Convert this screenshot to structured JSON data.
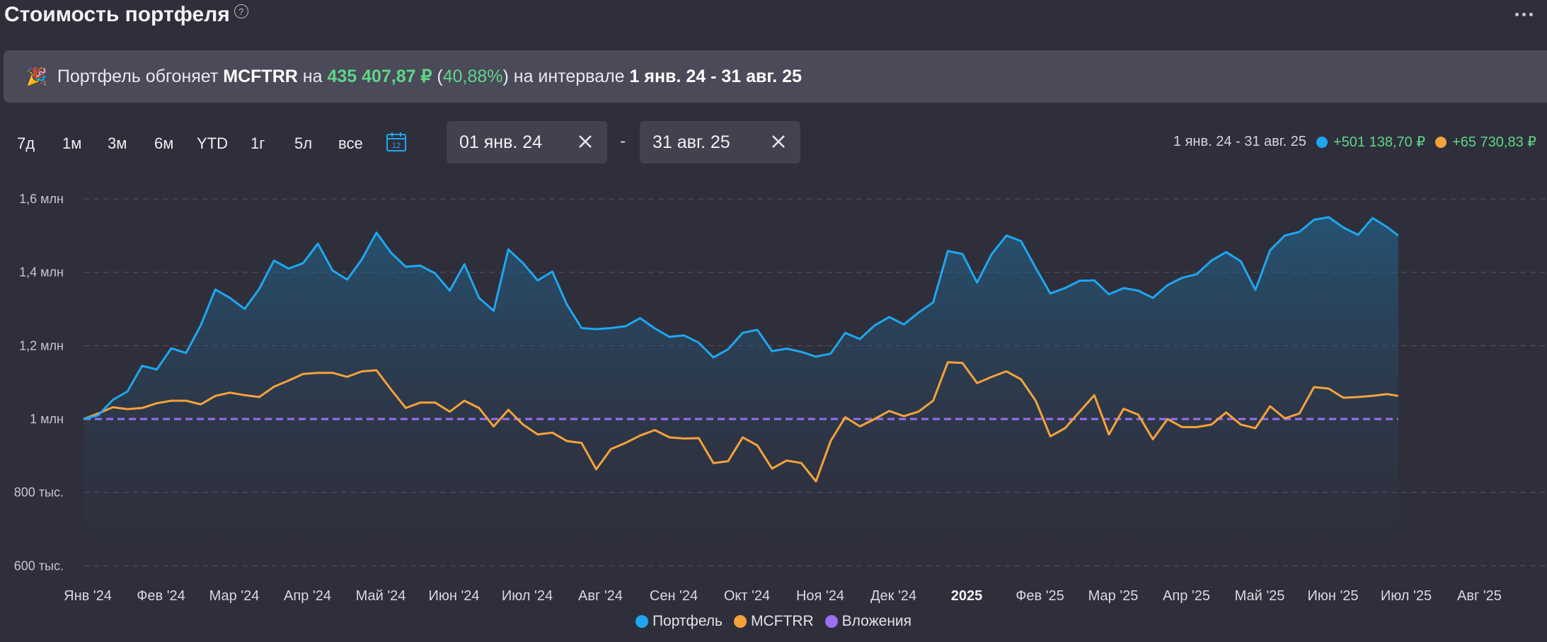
{
  "header": {
    "title": "Стоимость портфеля",
    "help_icon": "question-circle-icon",
    "more_icon": "more-dots-icon"
  },
  "banner": {
    "icon": "🎉",
    "text1": "Портфель обгоняет ",
    "benchmark": "MCFTRR",
    "text2": " на ",
    "amount": "435 407,87 ₽",
    "paren_open": " (",
    "percent": "40,88%",
    "paren_close": ")",
    "text3": " на интервале ",
    "interval": "1 янв. 24 - 31 авг. 25"
  },
  "periods": [
    "7д",
    "1м",
    "3м",
    "6м",
    "YTD",
    "1г",
    "5л",
    "все"
  ],
  "calendar": {
    "icon": "calendar-icon",
    "day": "12",
    "color": "#1ea7f0"
  },
  "date_range": {
    "from": "01 янв. 24",
    "separator": "-",
    "to": "31 авг. 25"
  },
  "summary": {
    "interval": "1 янв. 24 - 31 авг. 25",
    "portfolio_change": "+501 138,70 ₽",
    "benchmark_change": "+65 730,83 ₽"
  },
  "legend": [
    {
      "name": "Портфель",
      "color": "#1ea7f0"
    },
    {
      "name": "MCFTRR",
      "color": "#f5a23a"
    },
    {
      "name": "Вложения",
      "color": "#9b6ef3"
    }
  ],
  "chart_data": {
    "type": "line",
    "y_ticks": [
      {
        "value": 1600000,
        "label": "1,6 млн"
      },
      {
        "value": 1400000,
        "label": "1,4 млн"
      },
      {
        "value": 1200000,
        "label": "1,2 млн"
      },
      {
        "value": 1000000,
        "label": "1 млн"
      },
      {
        "value": 800000,
        "label": "800 тыс."
      },
      {
        "value": 600000,
        "label": "600 тыс."
      }
    ],
    "ylim": [
      580000,
      1650000
    ],
    "x_ticks": [
      {
        "month": 0,
        "label": "Янв '24"
      },
      {
        "month": 1,
        "label": "Фев '24"
      },
      {
        "month": 2,
        "label": "Мар '24"
      },
      {
        "month": 3,
        "label": "Апр '24"
      },
      {
        "month": 4,
        "label": "Май '24"
      },
      {
        "month": 5,
        "label": "Июн '24"
      },
      {
        "month": 6,
        "label": "Июл '24"
      },
      {
        "month": 7,
        "label": "Авг '24"
      },
      {
        "month": 8,
        "label": "Сен '24"
      },
      {
        "month": 9,
        "label": "Окт '24"
      },
      {
        "month": 10,
        "label": "Ноя '24"
      },
      {
        "month": 11,
        "label": "Дек '24"
      },
      {
        "month": 12,
        "label": "2025",
        "bold": true
      },
      {
        "month": 13,
        "label": "Фев '25"
      },
      {
        "month": 14,
        "label": "Мар '25"
      },
      {
        "month": 15,
        "label": "Апр '25"
      },
      {
        "month": 16,
        "label": "Май '25"
      },
      {
        "month": 17,
        "label": "Июн '25"
      },
      {
        "month": 18,
        "label": "Июл '25"
      },
      {
        "month": 19,
        "label": "Авг '25"
      }
    ],
    "xlim": [
      0,
      19.95
    ],
    "grid": true,
    "series": [
      {
        "name": "Портфель",
        "color": "#1ea7f0",
        "area": true,
        "points": [
          [
            0,
            1000000
          ],
          [
            0.2,
            1010000
          ],
          [
            0.4,
            1052000
          ],
          [
            0.6,
            1075000
          ],
          [
            0.8,
            1145000
          ],
          [
            1.0,
            1135000
          ],
          [
            1.2,
            1193000
          ],
          [
            1.4,
            1180000
          ],
          [
            1.6,
            1255000
          ],
          [
            1.8,
            1353000
          ],
          [
            2.0,
            1330000
          ],
          [
            2.2,
            1300000
          ],
          [
            2.4,
            1355000
          ],
          [
            2.6,
            1432000
          ],
          [
            2.8,
            1410000
          ],
          [
            3.0,
            1425000
          ],
          [
            3.2,
            1478000
          ],
          [
            3.4,
            1405000
          ],
          [
            3.6,
            1380000
          ],
          [
            3.8,
            1435000
          ],
          [
            4.0,
            1508000
          ],
          [
            4.2,
            1453000
          ],
          [
            4.4,
            1415000
          ],
          [
            4.6,
            1418000
          ],
          [
            4.8,
            1397000
          ],
          [
            5.0,
            1350000
          ],
          [
            5.2,
            1422000
          ],
          [
            5.4,
            1330000
          ],
          [
            5.6,
            1295000
          ],
          [
            5.8,
            1462000
          ],
          [
            6.0,
            1425000
          ],
          [
            6.2,
            1378000
          ],
          [
            6.4,
            1402000
          ],
          [
            6.6,
            1312000
          ],
          [
            6.8,
            1248000
          ],
          [
            7.0,
            1245000
          ],
          [
            7.2,
            1248000
          ],
          [
            7.4,
            1253000
          ],
          [
            7.6,
            1275000
          ],
          [
            7.8,
            1247000
          ],
          [
            8.0,
            1224000
          ],
          [
            8.2,
            1228000
          ],
          [
            8.4,
            1208000
          ],
          [
            8.6,
            1168000
          ],
          [
            8.8,
            1190000
          ],
          [
            9.0,
            1235000
          ],
          [
            9.2,
            1243000
          ],
          [
            9.4,
            1185000
          ],
          [
            9.6,
            1192000
          ],
          [
            9.8,
            1183000
          ],
          [
            10.0,
            1170000
          ],
          [
            10.2,
            1178000
          ],
          [
            10.4,
            1235000
          ],
          [
            10.6,
            1218000
          ],
          [
            10.8,
            1255000
          ],
          [
            11.0,
            1278000
          ],
          [
            11.2,
            1258000
          ],
          [
            11.4,
            1290000
          ],
          [
            11.6,
            1318000
          ],
          [
            11.8,
            1458000
          ],
          [
            12.0,
            1450000
          ],
          [
            12.2,
            1372000
          ],
          [
            12.4,
            1450000
          ],
          [
            12.6,
            1500000
          ],
          [
            12.8,
            1485000
          ],
          [
            13.0,
            1412000
          ],
          [
            13.2,
            1342000
          ],
          [
            13.4,
            1357000
          ],
          [
            13.6,
            1377000
          ],
          [
            13.8,
            1378000
          ],
          [
            14.0,
            1340000
          ],
          [
            14.2,
            1357000
          ],
          [
            14.4,
            1350000
          ],
          [
            14.6,
            1330000
          ],
          [
            14.8,
            1365000
          ],
          [
            15.0,
            1385000
          ],
          [
            15.2,
            1395000
          ],
          [
            15.4,
            1432000
          ],
          [
            15.6,
            1455000
          ],
          [
            15.8,
            1430000
          ],
          [
            16.0,
            1352000
          ],
          [
            16.2,
            1460000
          ],
          [
            16.4,
            1500000
          ],
          [
            16.6,
            1510000
          ],
          [
            16.8,
            1543000
          ],
          [
            17.0,
            1550000
          ],
          [
            17.2,
            1522000
          ],
          [
            17.4,
            1502000
          ],
          [
            17.6,
            1548000
          ],
          [
            17.8,
            1523000
          ],
          [
            17.95,
            1500000
          ]
        ]
      },
      {
        "name": "MCFTRR",
        "color": "#f5a23a",
        "points": [
          [
            0,
            1000000
          ],
          [
            0.2,
            1015000
          ],
          [
            0.4,
            1032000
          ],
          [
            0.6,
            1027000
          ],
          [
            0.8,
            1030000
          ],
          [
            1.0,
            1043000
          ],
          [
            1.2,
            1050000
          ],
          [
            1.4,
            1050000
          ],
          [
            1.6,
            1040000
          ],
          [
            1.8,
            1063000
          ],
          [
            2.0,
            1072000
          ],
          [
            2.2,
            1065000
          ],
          [
            2.4,
            1060000
          ],
          [
            2.6,
            1088000
          ],
          [
            2.8,
            1105000
          ],
          [
            3.0,
            1123000
          ],
          [
            3.2,
            1126000
          ],
          [
            3.4,
            1126000
          ],
          [
            3.6,
            1115000
          ],
          [
            3.8,
            1130000
          ],
          [
            4.0,
            1133000
          ],
          [
            4.2,
            1080000
          ],
          [
            4.4,
            1030000
          ],
          [
            4.6,
            1045000
          ],
          [
            4.8,
            1045000
          ],
          [
            5.0,
            1020000
          ],
          [
            5.2,
            1050000
          ],
          [
            5.4,
            1030000
          ],
          [
            5.6,
            980000
          ],
          [
            5.8,
            1025000
          ],
          [
            6.0,
            985000
          ],
          [
            6.2,
            958000
          ],
          [
            6.4,
            963000
          ],
          [
            6.6,
            940000
          ],
          [
            6.8,
            935000
          ],
          [
            7.0,
            863000
          ],
          [
            7.2,
            918000
          ],
          [
            7.4,
            935000
          ],
          [
            7.6,
            955000
          ],
          [
            7.8,
            970000
          ],
          [
            8.0,
            950000
          ],
          [
            8.2,
            947000
          ],
          [
            8.4,
            948000
          ],
          [
            8.6,
            880000
          ],
          [
            8.8,
            885000
          ],
          [
            9.0,
            950000
          ],
          [
            9.2,
            928000
          ],
          [
            9.4,
            865000
          ],
          [
            9.6,
            887000
          ],
          [
            9.8,
            880000
          ],
          [
            10.0,
            830000
          ],
          [
            10.2,
            940000
          ],
          [
            10.4,
            1005000
          ],
          [
            10.6,
            980000
          ],
          [
            10.8,
            1000000
          ],
          [
            11.0,
            1022000
          ],
          [
            11.2,
            1008000
          ],
          [
            11.4,
            1020000
          ],
          [
            11.6,
            1050000
          ],
          [
            11.8,
            1155000
          ],
          [
            12.0,
            1153000
          ],
          [
            12.2,
            1098000
          ],
          [
            12.4,
            1115000
          ],
          [
            12.6,
            1130000
          ],
          [
            12.8,
            1108000
          ],
          [
            13.0,
            1050000
          ],
          [
            13.2,
            953000
          ],
          [
            13.4,
            975000
          ],
          [
            13.6,
            1020000
          ],
          [
            13.8,
            1065000
          ],
          [
            14.0,
            958000
          ],
          [
            14.2,
            1028000
          ],
          [
            14.4,
            1012000
          ],
          [
            14.6,
            945000
          ],
          [
            14.8,
            1000000
          ],
          [
            15.0,
            978000
          ],
          [
            15.2,
            978000
          ],
          [
            15.4,
            985000
          ],
          [
            15.6,
            1018000
          ],
          [
            15.8,
            985000
          ],
          [
            16.0,
            975000
          ],
          [
            16.2,
            1035000
          ],
          [
            16.4,
            1002000
          ],
          [
            16.6,
            1015000
          ],
          [
            16.8,
            1087000
          ],
          [
            17.0,
            1083000
          ],
          [
            17.2,
            1058000
          ],
          [
            17.4,
            1060000
          ],
          [
            17.6,
            1063000
          ],
          [
            17.8,
            1068000
          ],
          [
            17.95,
            1063000
          ]
        ]
      },
      {
        "name": "Вложения",
        "color": "#9b6ef3",
        "dashed": true,
        "points": [
          [
            0,
            1000000
          ],
          [
            17.95,
            1000000
          ]
        ]
      }
    ]
  }
}
